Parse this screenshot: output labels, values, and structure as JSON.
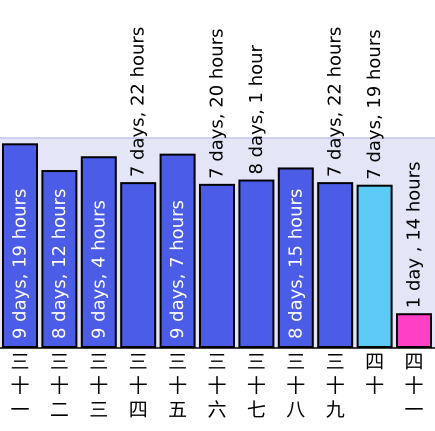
{
  "chart_data": {
    "type": "bar",
    "categories": [
      "三十一",
      "三十二",
      "三十三",
      "三十四",
      "三十五",
      "三十六",
      "三十七",
      "三十八",
      "三十九",
      "四十",
      "四十一"
    ],
    "labels": [
      "9 days, 19 hours",
      "8 days, 12 hours",
      "9 days, 4 hours",
      "7 days, 22 hours",
      "9 days, 7 hours",
      "7 days, 20 hours",
      "8 days, 1 hour",
      "8 days, 15 hours",
      "7 days, 22 hours",
      "7 days, 19 hours",
      "1 day , 14 hours"
    ],
    "values_hours": [
      235,
      204,
      220,
      190,
      223,
      188,
      193,
      207,
      190,
      187,
      38
    ],
    "ylim": [
      0,
      400
    ],
    "colors": {
      "bar": "#4b5ce6",
      "highlight": "#5ccbf5",
      "last": "#ff3fc6",
      "outline": "#000000",
      "band": "#e4e6f8",
      "band_line": "#c4c6ea"
    },
    "highlight_index": 9,
    "last_index": 10
  }
}
